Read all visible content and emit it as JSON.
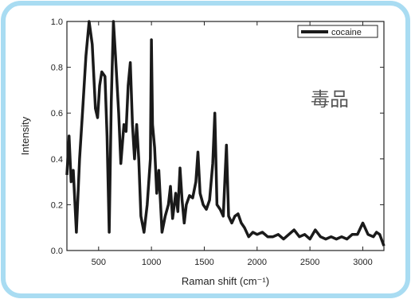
{
  "chart_data": {
    "type": "line",
    "xlabel": "Raman shift (cm⁻¹)",
    "ylabel": "Intensity",
    "annotation": "毒品",
    "x": [
      200,
      220,
      240,
      260,
      290,
      320,
      350,
      380,
      410,
      440,
      470,
      490,
      510,
      530,
      560,
      580,
      600,
      620,
      640,
      660,
      690,
      710,
      740,
      760,
      780,
      800,
      820,
      840,
      860,
      880,
      900,
      930,
      960,
      990,
      1000,
      1010,
      1030,
      1050,
      1070,
      1100,
      1130,
      1160,
      1180,
      1200,
      1230,
      1250,
      1270,
      1290,
      1310,
      1330,
      1360,
      1390,
      1420,
      1440,
      1460,
      1490,
      1520,
      1550,
      1580,
      1600,
      1620,
      1650,
      1680,
      1710,
      1730,
      1760,
      1790,
      1820,
      1850,
      1880,
      1920,
      1960,
      2000,
      2050,
      2100,
      2150,
      2200,
      2250,
      2300,
      2350,
      2400,
      2450,
      2500,
      2550,
      2600,
      2650,
      2700,
      2750,
      2800,
      2850,
      2900,
      2950,
      3000,
      3050,
      3100,
      3130,
      3160,
      3200
    ],
    "series": [
      {
        "name": "cocaine",
        "color": "#1a1a1a",
        "values": [
          0.33,
          0.5,
          0.3,
          0.35,
          0.08,
          0.4,
          0.62,
          0.85,
          1.0,
          0.9,
          0.62,
          0.58,
          0.72,
          0.78,
          0.76,
          0.5,
          0.08,
          0.65,
          1.0,
          0.85,
          0.6,
          0.38,
          0.55,
          0.52,
          0.72,
          0.82,
          0.55,
          0.4,
          0.55,
          0.4,
          0.15,
          0.08,
          0.2,
          0.4,
          0.92,
          0.55,
          0.45,
          0.25,
          0.35,
          0.08,
          0.15,
          0.2,
          0.28,
          0.14,
          0.25,
          0.17,
          0.36,
          0.22,
          0.12,
          0.2,
          0.24,
          0.23,
          0.3,
          0.43,
          0.25,
          0.2,
          0.18,
          0.22,
          0.38,
          0.6,
          0.2,
          0.18,
          0.15,
          0.46,
          0.15,
          0.12,
          0.15,
          0.16,
          0.12,
          0.1,
          0.06,
          0.08,
          0.07,
          0.08,
          0.06,
          0.06,
          0.07,
          0.05,
          0.07,
          0.09,
          0.06,
          0.07,
          0.05,
          0.09,
          0.06,
          0.05,
          0.06,
          0.05,
          0.06,
          0.05,
          0.07,
          0.07,
          0.12,
          0.07,
          0.06,
          0.08,
          0.07,
          0.02
        ]
      }
    ],
    "xlim": [
      200,
      3200
    ],
    "ylim": [
      0,
      1
    ],
    "xticks": [
      500,
      1000,
      1500,
      2000,
      2500,
      3000
    ],
    "yticks": [
      {
        "value": 0,
        "label": "0.0"
      },
      0.2,
      0.4,
      0.6,
      0.8,
      {
        "value": 1,
        "label": "1.0"
      }
    ],
    "legend": "upper right"
  }
}
